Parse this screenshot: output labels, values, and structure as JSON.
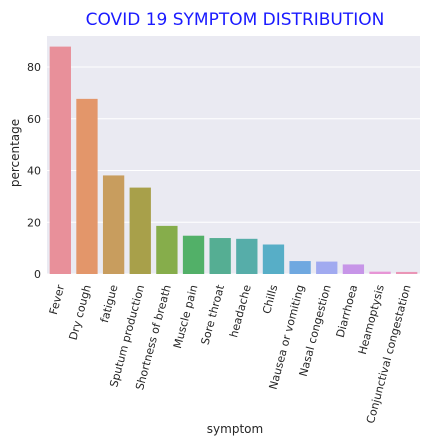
{
  "chart_data": {
    "type": "bar",
    "title": "COVID 19 SYMPTOM DISTRIBUTION",
    "xlabel": "symptom",
    "ylabel": "percentage",
    "categories": [
      "Fever",
      "Dry cough",
      "fatigue",
      "Sputum production",
      "Shortness of breath",
      "Muscle pain",
      "Sore throat",
      "headache",
      "Chills",
      "Nausea or vomiting",
      "Nasal congestion",
      "Diarrhoea",
      "Heamoptysis",
      "Conjunctival congestation"
    ],
    "values": [
      87.9,
      67.7,
      38.1,
      33.4,
      18.6,
      14.8,
      13.9,
      13.6,
      11.4,
      5.0,
      4.8,
      3.7,
      0.9,
      0.8
    ],
    "yticks": [
      0,
      20,
      40,
      60,
      80
    ],
    "ylim": [
      0,
      92
    ],
    "grid": true,
    "colors": {
      "title": "#1a1aff",
      "background": "#eaeaf2",
      "grid": "#ffffff",
      "text": "#262626",
      "bars": [
        "#e8909a",
        "#e3966a",
        "#c89d5e",
        "#a8a04a",
        "#86ad4b",
        "#52b068",
        "#55ae93",
        "#56ada9",
        "#57aec7",
        "#6fa8e0",
        "#a1aaf0",
        "#c795e8",
        "#e795d6",
        "#ea95b6"
      ]
    }
  }
}
